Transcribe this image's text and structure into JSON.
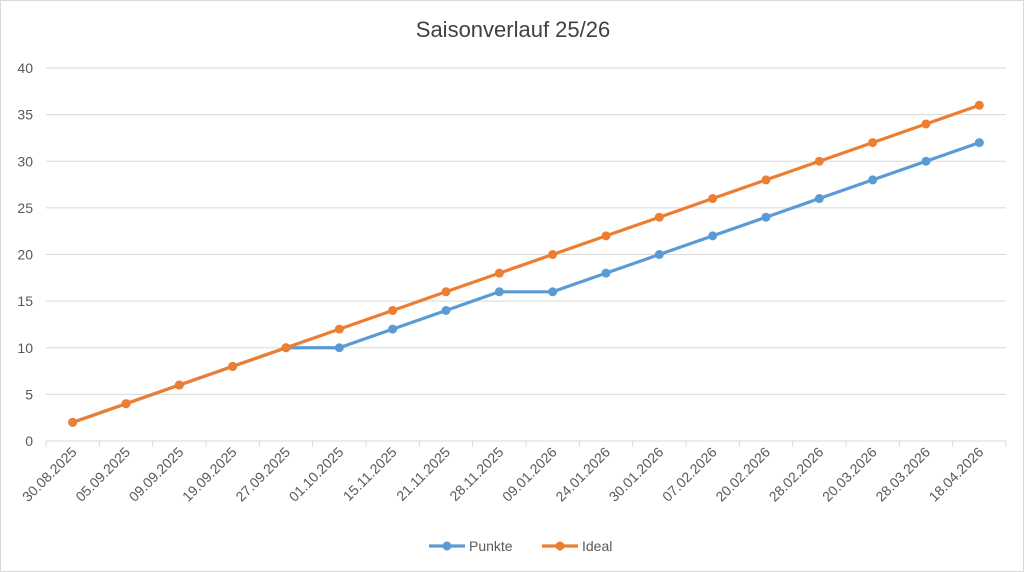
{
  "chart_data": {
    "type": "line",
    "title": "Saisonverlauf 25/26",
    "xlabel": "",
    "ylabel": "",
    "categories": [
      "30.08.2025",
      "05.09.2025",
      "09.09.2025",
      "19.09.2025",
      "27.09.2025",
      "01.10.2025",
      "15.11.2025",
      "21.11.2025",
      "28.11.2025",
      "09.01.2026",
      "24.01.2026",
      "30.01.2026",
      "07.02.2026",
      "20.02.2026",
      "28.02.2026",
      "20.03.2026",
      "28.03.2026",
      "18.04.2026"
    ],
    "series": [
      {
        "name": "Punkte",
        "color": "#5b9bd5",
        "values": [
          2,
          4,
          6,
          8,
          10,
          10,
          12,
          14,
          16,
          16,
          18,
          20,
          22,
          24,
          26,
          28,
          30,
          32
        ]
      },
      {
        "name": "Ideal",
        "color": "#ed7d31",
        "values": [
          2,
          4,
          6,
          8,
          10,
          12,
          14,
          16,
          18,
          20,
          22,
          24,
          26,
          28,
          30,
          32,
          34,
          36
        ]
      }
    ],
    "ylim": [
      0,
      40
    ],
    "yticks": [
      0,
      5,
      10,
      15,
      20,
      25,
      30,
      35,
      40
    ],
    "grid": true,
    "legend": "bottom"
  }
}
